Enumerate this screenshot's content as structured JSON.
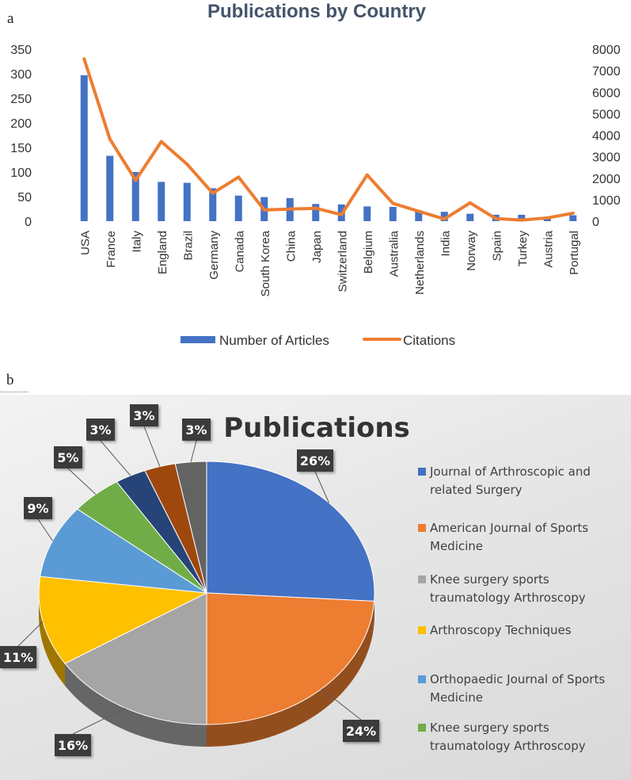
{
  "panels": {
    "a": "a",
    "b": "b"
  },
  "chart_data": [
    {
      "type": "bar+line",
      "title": "Publications by Country",
      "categories": [
        "USA",
        "France",
        "Italy",
        "England",
        "Brazil",
        "Germany",
        "Canada",
        "South Korea",
        "China",
        "Japan",
        "Switzerland",
        "Belgium",
        "Australia",
        "Netherlands",
        "India",
        "Norway",
        "Spain",
        "Turkey",
        "Austria",
        "Portugal"
      ],
      "series": [
        {
          "name": "Number of Articles",
          "type": "bar",
          "axis": "left",
          "color": "#4472c4",
          "values": [
            297,
            133,
            100,
            80,
            78,
            67,
            52,
            49,
            47,
            35,
            34,
            30,
            29,
            22,
            19,
            15,
            13,
            13,
            9,
            12
          ]
        },
        {
          "name": "Citations",
          "type": "line",
          "axis": "right",
          "color": "#ed7d31",
          "values": [
            7550,
            3820,
            1900,
            3700,
            2650,
            1300,
            2050,
            520,
            560,
            600,
            300,
            2150,
            830,
            460,
            100,
            850,
            120,
            50,
            150,
            370
          ]
        }
      ],
      "y_left": {
        "ylim": [
          0,
          350
        ],
        "ticks": [
          0,
          50,
          100,
          150,
          200,
          250,
          300,
          350
        ]
      },
      "y_right": {
        "ylim": [
          0,
          8000
        ],
        "ticks": [
          0,
          1000,
          2000,
          3000,
          4000,
          5000,
          6000,
          7000,
          8000
        ]
      },
      "legend": "bottom"
    },
    {
      "type": "pie",
      "title": "Publications",
      "slices": [
        {
          "label": "Journal of Arthroscopic and related Surgery",
          "value": 26,
          "text": "26%",
          "color": "#4472c4"
        },
        {
          "label": "American Journal of Sports Medicine",
          "value": 24,
          "text": "24%",
          "color": "#ed7d31"
        },
        {
          "label": "Knee surgery sports traumatology Arthroscopy",
          "value": 16,
          "text": "16%",
          "color": "#a5a5a5"
        },
        {
          "label": "Arthroscopy Techniques",
          "value": 11,
          "text": "11%",
          "color": "#ffc000"
        },
        {
          "label": "Orthopaedic Journal of Sports Medicine",
          "value": 9,
          "text": "9%",
          "color": "#5b9bd5"
        },
        {
          "label": "Knee surgery sports traumatology Arthroscopy",
          "value": 5,
          "text": "5%",
          "color": "#70ad47"
        },
        {
          "label": "",
          "value": 3,
          "text": "3%",
          "color": "#264478"
        },
        {
          "label": "",
          "value": 3,
          "text": "3%",
          "color": "#9e480e"
        },
        {
          "label": "",
          "value": 3,
          "text": "3%",
          "color": "#636363"
        }
      ],
      "legend": "right"
    }
  ]
}
